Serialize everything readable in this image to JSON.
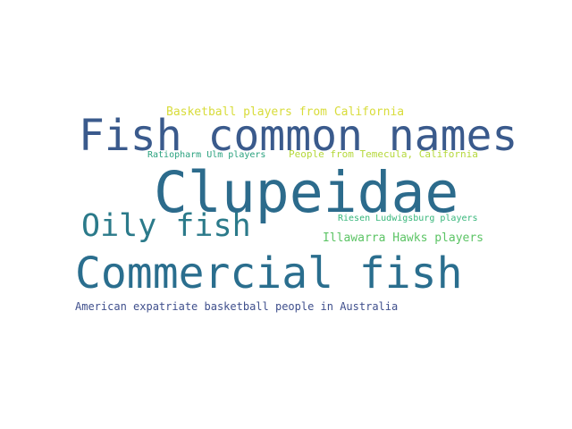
{
  "words": [
    {
      "text": "Clupeidae",
      "color": "#2c6b8c"
    },
    {
      "text": "Fish common names",
      "color": "#3a5a8c"
    },
    {
      "text": "Commercial fish",
      "color": "#2a6e8e"
    },
    {
      "text": "Oily fish",
      "color": "#2b7a8a"
    },
    {
      "text": "Basketball players from California",
      "color": "#d8dc3a"
    },
    {
      "text": "Ratiopharm Ulm players",
      "color": "#29a17e"
    },
    {
      "text": "People from Temecula, California",
      "color": "#b5d83a"
    },
    {
      "text": "Riesen Ludwigsburg players",
      "color": "#36b67a"
    },
    {
      "text": "Illawarra Hawks players",
      "color": "#5cc465"
    },
    {
      "text": "American expatriate basketball people in Australia",
      "color": "#3f4f8c"
    }
  ]
}
